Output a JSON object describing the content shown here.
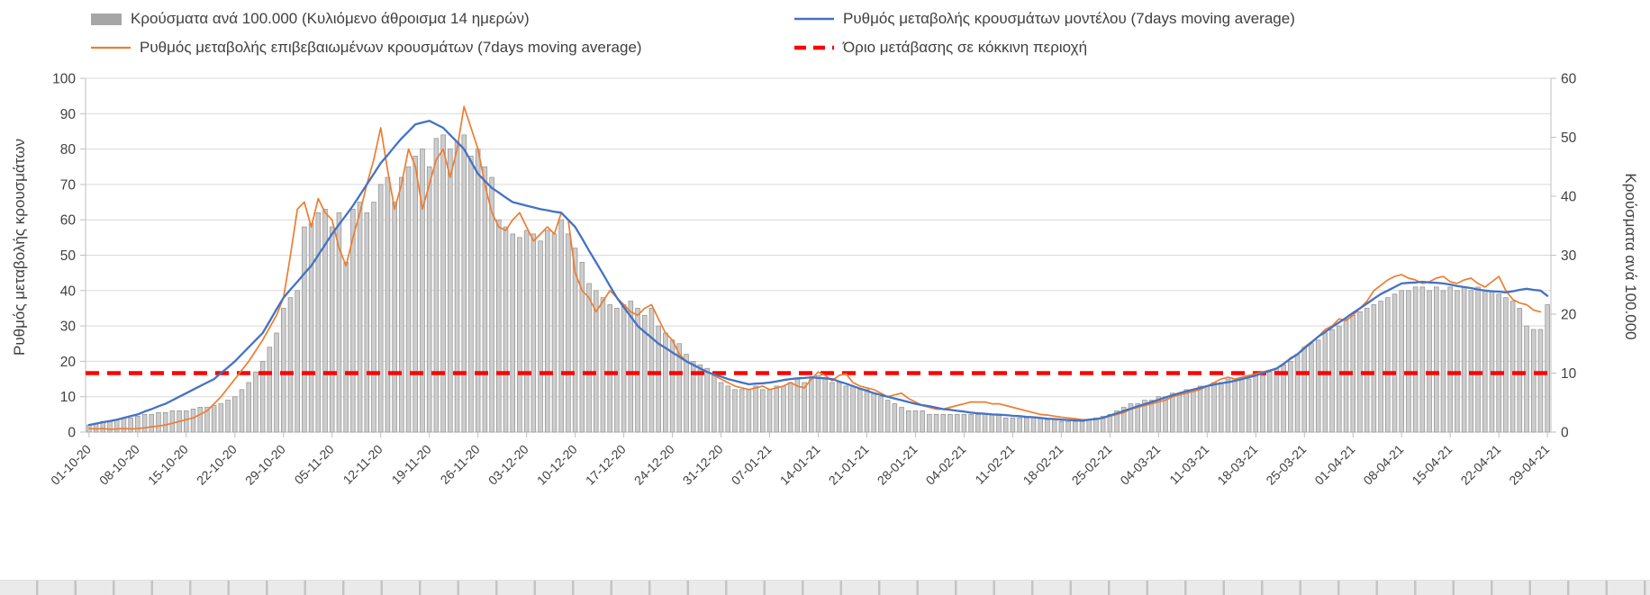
{
  "colors": {
    "bars": "#cdcdcd",
    "bar_edge": "#949494",
    "bar_legend": "#a6a6a6",
    "model": "#4472c4",
    "confirmed": "#ed7d31",
    "threshold": "#ff0000",
    "grid": "#d9d9d9",
    "axis": "#bfbfbf"
  },
  "chart_data": {
    "type": "bar+line combo, dual y-axis, daily data with weekly x labels",
    "points_per_label": 7,
    "x_tick_labels": [
      "01-10-20",
      "08-10-20",
      "15-10-20",
      "22-10-20",
      "29-10-20",
      "05-11-20",
      "12-11-20",
      "19-11-20",
      "26-11-20",
      "03-12-20",
      "10-12-20",
      "17-12-20",
      "24-12-20",
      "31-12-20",
      "07-01-21",
      "14-01-21",
      "21-01-21",
      "28-01-21",
      "04-02-21",
      "11-02-21",
      "18-02-21",
      "25-02-21",
      "04-03-21",
      "11-03-21",
      "18-03-21",
      "25-03-21",
      "01-04-21",
      "08-04-21",
      "15-04-21",
      "22-04-21",
      "29-04-21"
    ],
    "left_axis": {
      "label": "Ρυθμός μεταβολής κρουσμάτων",
      "range": [
        0,
        100
      ],
      "tick_labels": [
        "0",
        "10",
        "20",
        "30",
        "40",
        "50",
        "60",
        "70",
        "80",
        "90",
        "100"
      ]
    },
    "right_axis": {
      "label": "Κρούσματα ανά 100.000",
      "range": [
        0,
        60
      ],
      "tick_labels": [
        "0",
        "10",
        "20",
        "30",
        "40",
        "50",
        "60"
      ]
    },
    "threshold": {
      "label": "Όριο μετάβασης σε κόκκινη περιοχή",
      "axis": "right",
      "value": 10,
      "style": "dashed red"
    },
    "series": [
      {
        "name": "Κρούσματα ανά 100.000 (Κυλιόμενο άθροισμα 14 ημερών)",
        "type": "bar",
        "axis": "right",
        "values": [
          1.2,
          1.5,
          1.8,
          1.8,
          2.1,
          2.4,
          2.4,
          2.7,
          3,
          3,
          3.3,
          3.3,
          3.6,
          3.6,
          3.6,
          3.9,
          4.2,
          4.2,
          4.5,
          4.8,
          5.4,
          6,
          7.2,
          8.4,
          10.2,
          12,
          14.4,
          16.8,
          21,
          22.8,
          24,
          34.8,
          35.4,
          37.2,
          37.8,
          34.8,
          37.2,
          28.8,
          37.8,
          39,
          37.2,
          39,
          42,
          43.2,
          39,
          43.2,
          45,
          46.8,
          48,
          45,
          49.8,
          50.4,
          48,
          49.2,
          50.4,
          46.8,
          48,
          45,
          43.2,
          36,
          34.8,
          33.6,
          33,
          34.2,
          33.6,
          32.4,
          34.2,
          33.6,
          36,
          33.6,
          31.2,
          28.8,
          25.2,
          24,
          22.8,
          21.6,
          21,
          21.6,
          22.2,
          21,
          19.8,
          21,
          18,
          16.8,
          15.6,
          15,
          13.2,
          12,
          11.4,
          10.8,
          9.6,
          8.4,
          7.8,
          7.2,
          7.2,
          7.2,
          7.8,
          7.2,
          7.2,
          7.8,
          7.8,
          8.4,
          9,
          8.4,
          9,
          9.6,
          9,
          8.4,
          8.4,
          7.8,
          7.8,
          7.2,
          7.2,
          6.6,
          6,
          5.4,
          4.8,
          4.2,
          3.6,
          3.6,
          3.6,
          3,
          3,
          3,
          3,
          3,
          3,
          3,
          3,
          3,
          3,
          3,
          2.4,
          2.4,
          2.4,
          2.4,
          2.4,
          2.4,
          2.1,
          2.1,
          1.8,
          1.8,
          1.8,
          1.8,
          2.1,
          2.4,
          2.7,
          3,
          3.6,
          4.2,
          4.8,
          4.8,
          5.4,
          5.4,
          6,
          6,
          6.6,
          6.6,
          7.2,
          7.2,
          7.8,
          7.8,
          8.4,
          8.4,
          9,
          9,
          9,
          9,
          9.6,
          9.6,
          10.2,
          10.8,
          11.4,
          12,
          13.2,
          14.4,
          15,
          15.6,
          16.8,
          17.4,
          18,
          19.2,
          19.8,
          20.4,
          21,
          21.6,
          22.2,
          22.8,
          23.4,
          24,
          24,
          24.6,
          24.6,
          24,
          24.6,
          24,
          24.6,
          24,
          24.6,
          24,
          24.6,
          24,
          24,
          23.4,
          22.8,
          22.2,
          21,
          18,
          17.4,
          17.4,
          21.6
        ]
      },
      {
        "name": "Ρυθμός μεταβολής κρουσμάτων μοντέλου (7days moving average)",
        "type": "line",
        "axis": "left",
        "color_key": "model",
        "values": [
          2,
          2.4,
          2.8,
          3.1,
          3.5,
          4,
          4.5,
          5,
          5.8,
          6.5,
          7.3,
          8,
          9,
          10,
          11,
          12,
          13,
          14,
          15,
          16.7,
          18.3,
          20,
          22,
          24,
          26,
          28,
          31.3,
          34.7,
          38,
          40.3,
          42.5,
          44.8,
          47,
          50,
          53,
          56,
          58.7,
          61.3,
          64,
          67,
          70,
          73,
          76,
          78.3,
          80.7,
          83,
          85,
          87,
          87.5,
          88,
          87,
          86,
          84,
          82,
          80,
          76.5,
          73,
          71,
          69,
          67.7,
          66.3,
          65,
          64.5,
          64,
          63.5,
          63,
          62.7,
          62.3,
          62,
          60,
          58,
          54.7,
          51.3,
          48,
          44.7,
          41.3,
          38,
          35.3,
          32.7,
          30,
          28.3,
          26.7,
          25,
          23.8,
          22.5,
          21.3,
          20,
          19,
          18,
          17,
          16.3,
          15.7,
          15,
          14.5,
          14,
          13.5,
          13.7,
          13.8,
          14,
          14.3,
          14.7,
          15,
          15.2,
          15.3,
          15.5,
          15.3,
          15.2,
          15,
          14.3,
          13.7,
          13,
          12.3,
          11.7,
          11,
          10.5,
          10,
          9.5,
          9,
          8.5,
          8,
          7.6,
          7.3,
          6.9,
          6.5,
          6.3,
          6,
          5.8,
          5.5,
          5.3,
          5.2,
          5,
          4.9,
          4.8,
          4.6,
          4.5,
          4.3,
          4.2,
          4,
          3.8,
          3.7,
          3.5,
          3.4,
          3.3,
          3.2,
          3.5,
          3.7,
          4,
          4.7,
          5.3,
          6,
          6.6,
          7.3,
          7.9,
          8.5,
          9.1,
          9.8,
          10.4,
          11,
          11.5,
          12,
          12.5,
          13,
          13.4,
          13.8,
          14.1,
          14.5,
          15,
          15.5,
          16,
          16.7,
          17.3,
          18,
          19.3,
          20.7,
          22,
          23.7,
          25.3,
          27,
          28.3,
          29.7,
          31,
          32.3,
          33.7,
          35,
          36.3,
          37.7,
          39,
          40,
          41,
          42,
          42.2,
          42.3,
          42.5,
          42.3,
          42.2,
          42,
          41.7,
          41.3,
          41,
          40.7,
          40.3,
          40,
          39.8,
          39.7,
          39.5,
          39.8,
          40.2,
          40.5,
          40.2,
          40,
          38.5
        ]
      },
      {
        "name": "Ρυθμός μεταβολής επιβεβαιωμένων κρουσμάτων (7days moving average)",
        "type": "line",
        "axis": "left",
        "color_key": "confirmed",
        "values": [
          1,
          0.9,
          1,
          0.8,
          0.9,
          1,
          0.9,
          1,
          1.2,
          1.5,
          1.7,
          2,
          2.5,
          3,
          3.5,
          4,
          5,
          6,
          8,
          10,
          12.5,
          15,
          17.5,
          20,
          23,
          26,
          29.5,
          33,
          38,
          50,
          63,
          65,
          58,
          66,
          62,
          60,
          52,
          47,
          55,
          62,
          70,
          77,
          86,
          74,
          63,
          70,
          80,
          75,
          63,
          70,
          77,
          80,
          72,
          80,
          92,
          86,
          80,
          70,
          62,
          58,
          57,
          60,
          62,
          58,
          54,
          56,
          58,
          56,
          62,
          60,
          45,
          40,
          38,
          34,
          37,
          40,
          38,
          36,
          34,
          33,
          35,
          36,
          32,
          28,
          26,
          22,
          20,
          19,
          18,
          17,
          16,
          15,
          14,
          13,
          12.5,
          12,
          12.5,
          13,
          12,
          12.5,
          13,
          14,
          13,
          12.5,
          15,
          17,
          16,
          14.5,
          16,
          16.5,
          14,
          13,
          12.5,
          12,
          11,
          10,
          10.5,
          11,
          9.5,
          8.5,
          7.5,
          7,
          6.5,
          6.5,
          7,
          7.5,
          8,
          8.5,
          8.5,
          8.5,
          8,
          8,
          7.5,
          7,
          6.5,
          6,
          5.5,
          5,
          4.8,
          4.5,
          4.2,
          4,
          3.8,
          3.5,
          3.5,
          3.6,
          4,
          4.5,
          5,
          5.5,
          6.5,
          7,
          7.5,
          8,
          8.5,
          9,
          10,
          10.5,
          11,
          11.5,
          12,
          13,
          14,
          15,
          15.5,
          15,
          15.5,
          16,
          16.5,
          17,
          17.5,
          18,
          19,
          21,
          22,
          24,
          25.5,
          27,
          29,
          30,
          32,
          31.5,
          33,
          35,
          37,
          40,
          41.5,
          43,
          44,
          44.5,
          43.5,
          43,
          42,
          42.5,
          43.5,
          44,
          42.5,
          42,
          43,
          43.5,
          42,
          41,
          42.5,
          44,
          40,
          37.5,
          36.5,
          36,
          34.5,
          34,
          null
        ]
      }
    ]
  }
}
